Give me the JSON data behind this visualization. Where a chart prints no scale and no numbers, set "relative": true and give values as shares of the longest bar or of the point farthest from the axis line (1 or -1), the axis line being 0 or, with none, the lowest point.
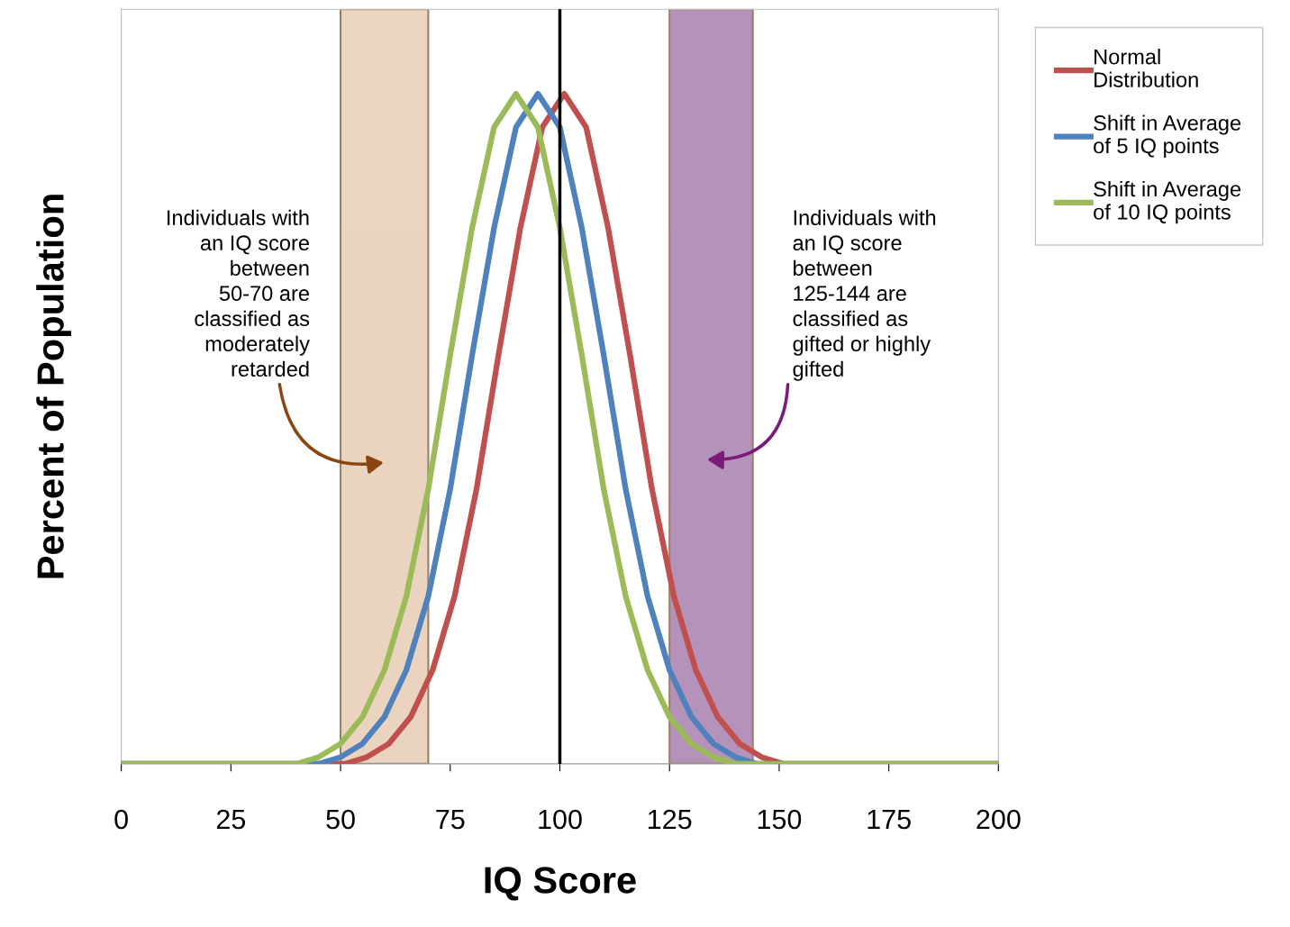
{
  "chart_data": {
    "type": "line",
    "relative": true,
    "xlabel": "IQ Score",
    "ylabel": "Percent of Population",
    "xlim": [
      0,
      200
    ],
    "xticks": [
      0,
      25,
      50,
      75,
      100,
      125,
      150,
      175,
      200
    ],
    "grid": false,
    "legend": "right",
    "marker": "none",
    "line_style": "solid",
    "series": [
      {
        "name": "Normal\nDistribution",
        "color": "#c0504d",
        "x": [
          0,
          46,
          51,
          56,
          61,
          66,
          71,
          76,
          81,
          86,
          91,
          96,
          101,
          106,
          111,
          116,
          121,
          126,
          131,
          136,
          141,
          146,
          151,
          156,
          200
        ],
        "values": [
          0,
          0,
          0,
          0.01,
          0.03,
          0.07,
          0.14,
          0.25,
          0.41,
          0.61,
          0.8,
          0.95,
          1,
          0.95,
          0.8,
          0.61,
          0.41,
          0.25,
          0.14,
          0.07,
          0.03,
          0.01,
          0,
          0,
          0
        ]
      },
      {
        "name": "Shift in Average\nof 5 IQ points",
        "color": "#4f81bd",
        "x": [
          0,
          40,
          45,
          50,
          55,
          60,
          65,
          70,
          75,
          80,
          85,
          90,
          95,
          100,
          105,
          110,
          115,
          120,
          125,
          130,
          135,
          140,
          145,
          150,
          200
        ],
        "values": [
          0,
          0,
          0,
          0.01,
          0.03,
          0.07,
          0.14,
          0.25,
          0.41,
          0.61,
          0.8,
          0.95,
          1,
          0.95,
          0.8,
          0.61,
          0.41,
          0.25,
          0.14,
          0.07,
          0.03,
          0.01,
          0,
          0,
          0
        ]
      },
      {
        "name": "Shift in Average\nof 10 IQ points",
        "color": "#9bbb59",
        "x": [
          0,
          35,
          40,
          45,
          50,
          55,
          60,
          65,
          70,
          75,
          80,
          85,
          90,
          95,
          100,
          105,
          110,
          115,
          120,
          125,
          130,
          135,
          140,
          145,
          200
        ],
        "values": [
          0,
          0,
          0,
          0.01,
          0.03,
          0.07,
          0.14,
          0.25,
          0.41,
          0.61,
          0.8,
          0.95,
          1,
          0.95,
          0.8,
          0.61,
          0.41,
          0.25,
          0.14,
          0.07,
          0.03,
          0.01,
          0,
          0,
          0
        ]
      }
    ],
    "ref_lines": [
      {
        "axis": "x",
        "value": 100,
        "color": "#000000"
      }
    ],
    "bands": [
      {
        "axis": "x",
        "from": 50,
        "to": 70,
        "color": "#e8cdb5"
      },
      {
        "axis": "x",
        "from": 125,
        "to": 144,
        "color": "#a97fad"
      }
    ],
    "annotations": [
      "Individuals with\nan IQ score\nbetween\n50-70 are\nclassified as\nmoderately\nretarded",
      "Individuals with\nan IQ score\nbetween\n125-144 are\nclassified as\ngifted or highly\ngifted"
    ]
  }
}
